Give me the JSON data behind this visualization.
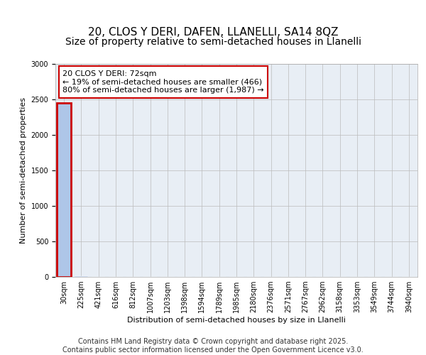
{
  "title": "20, CLOS Y DERI, DAFEN, LLANELLI, SA14 8QZ",
  "subtitle": "Size of property relative to semi-detached houses in Llanelli",
  "xlabel": "Distribution of semi-detached houses by size in Llanelli",
  "ylabel": "Number of semi-detached properties",
  "annotation_line1": "20 CLOS Y DERI: 72sqm",
  "annotation_line2": "← 19% of semi-detached houses are smaller (466)",
  "annotation_line3": "80% of semi-detached houses are larger (1,987) →",
  "footer_line1": "Contains HM Land Registry data © Crown copyright and database right 2025.",
  "footer_line2": "Contains public sector information licensed under the Open Government Licence v3.0.",
  "bin_labels": [
    "30sqm",
    "225sqm",
    "421sqm",
    "616sqm",
    "812sqm",
    "1007sqm",
    "1203sqm",
    "1398sqm",
    "1594sqm",
    "1789sqm",
    "1985sqm",
    "2180sqm",
    "2376sqm",
    "2571sqm",
    "2767sqm",
    "2962sqm",
    "3158sqm",
    "3353sqm",
    "3549sqm",
    "3744sqm",
    "3940sqm"
  ],
  "bar_values": [
    2453,
    10,
    5,
    3,
    2,
    1,
    1,
    1,
    0,
    0,
    0,
    0,
    0,
    0,
    0,
    0,
    0,
    0,
    0,
    0,
    0
  ],
  "bar_color": "#aec6e8",
  "highlighted_bar_index": 0,
  "highlight_color": "#cc0000",
  "ylim": [
    0,
    3000
  ],
  "yticks": [
    0,
    500,
    1000,
    1500,
    2000,
    2500,
    3000
  ],
  "background_color": "#ffffff",
  "plot_bg_color": "#e8eef5",
  "grid_color": "#bbbbbb",
  "title_fontsize": 11,
  "subtitle_fontsize": 10,
  "axis_label_fontsize": 8,
  "tick_fontsize": 7,
  "annotation_fontsize": 8,
  "footer_fontsize": 7
}
